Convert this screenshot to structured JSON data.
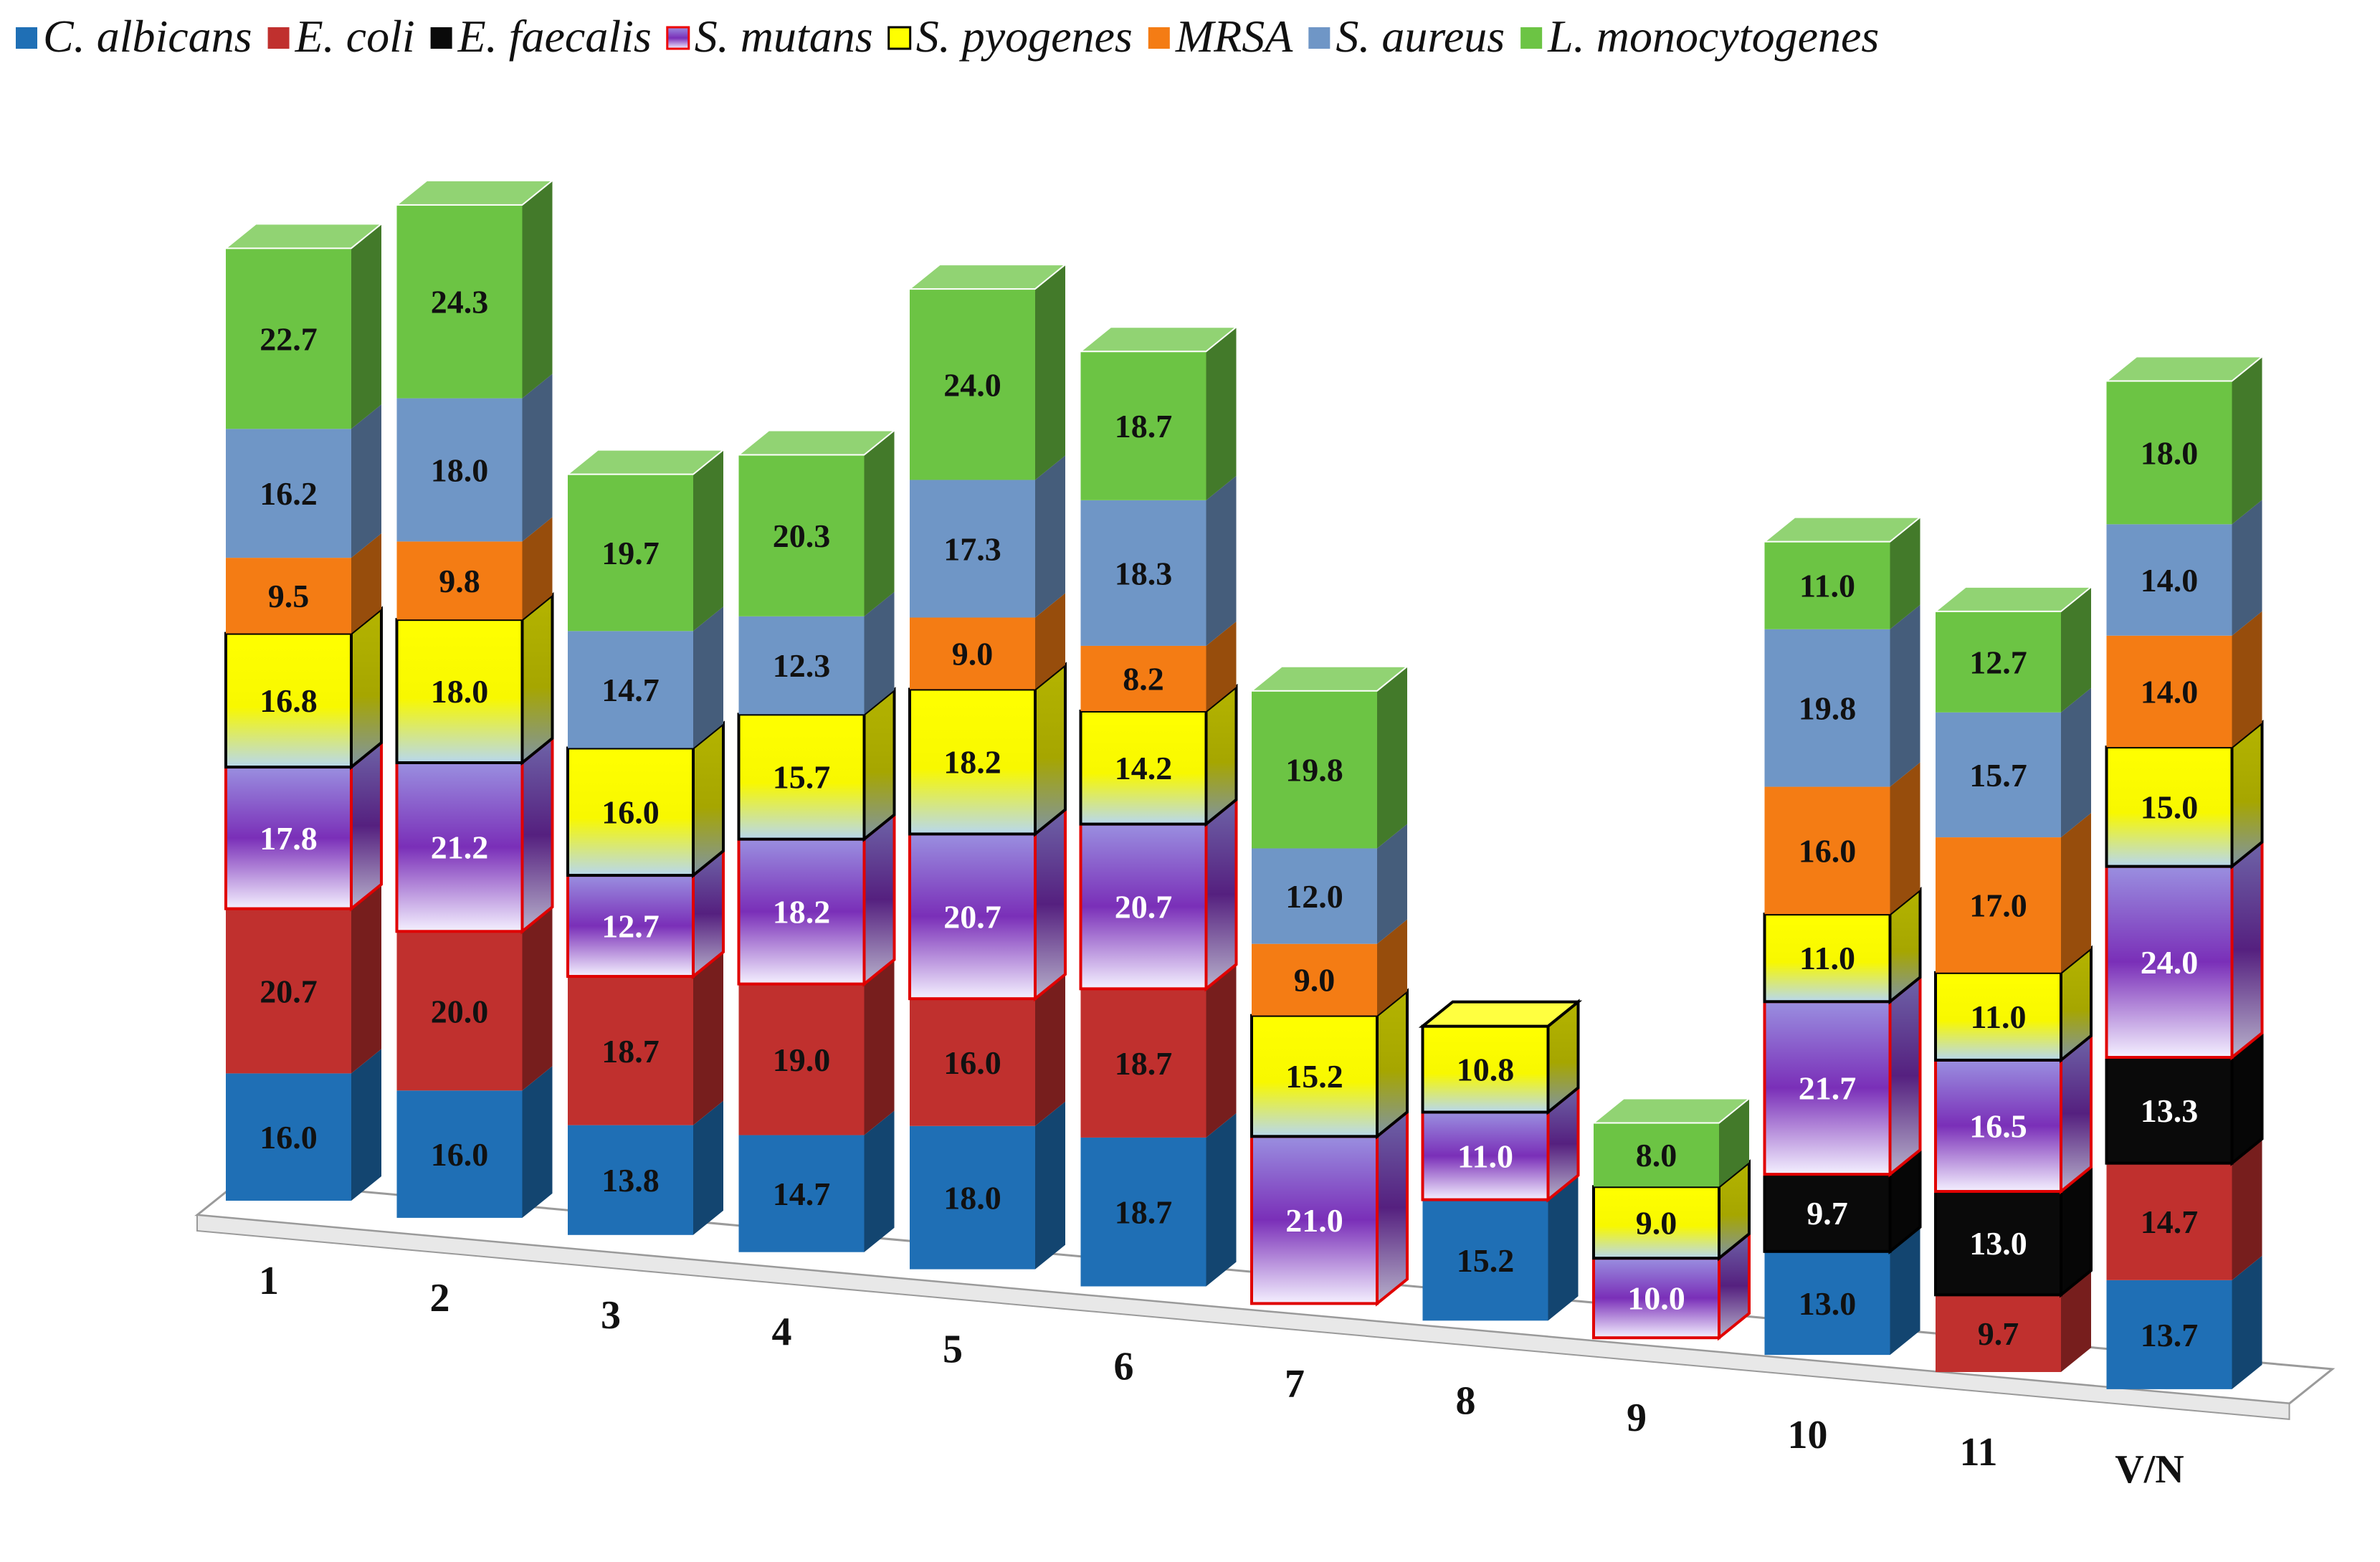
{
  "chart_data": {
    "type": "bar",
    "stacked": true,
    "style": "3d",
    "title": "",
    "xlabel": "",
    "ylabel": "",
    "grid": false,
    "legend_position": "top",
    "categories": [
      "1",
      "2",
      "3",
      "4",
      "5",
      "6",
      "7",
      "8",
      "9",
      "10",
      "11",
      "V/N"
    ],
    "series": [
      {
        "name": "C. albicans",
        "color": "#1f6fb5",
        "values": [
          16.0,
          16.0,
          13.8,
          14.7,
          18.0,
          18.7,
          null,
          15.2,
          null,
          13.0,
          null,
          13.7
        ]
      },
      {
        "name": "E. coli",
        "color": "#c0302e",
        "values": [
          20.7,
          20.0,
          18.7,
          19.0,
          16.0,
          18.7,
          null,
          null,
          null,
          null,
          9.7,
          14.7
        ]
      },
      {
        "name": "E. faecalis",
        "color": "#0a0a0a",
        "values": [
          null,
          null,
          null,
          null,
          null,
          null,
          null,
          null,
          null,
          9.7,
          13.0,
          13.3
        ]
      },
      {
        "name": "S. mutans",
        "color": "#8a3fc0",
        "values": [
          17.8,
          21.2,
          12.7,
          18.2,
          20.7,
          20.7,
          21.0,
          11.0,
          10.0,
          21.7,
          16.5,
          24.0
        ]
      },
      {
        "name": "S. pyogenes",
        "color": "#ffff00",
        "values": [
          16.8,
          18.0,
          16.0,
          15.7,
          18.2,
          14.2,
          15.2,
          10.8,
          9.0,
          11.0,
          11.0,
          15.0
        ]
      },
      {
        "name": "MRSA",
        "color": "#f47c14",
        "values": [
          9.5,
          9.8,
          null,
          null,
          9.0,
          8.2,
          9.0,
          null,
          null,
          16.0,
          17.0,
          14.0
        ]
      },
      {
        "name": "S. aureus",
        "color": "#6f96c6",
        "values": [
          16.2,
          18.0,
          14.7,
          12.3,
          17.3,
          18.3,
          12.0,
          null,
          null,
          19.8,
          15.7,
          14.0
        ]
      },
      {
        "name": "L. monocytogenes",
        "color": "#6cc444",
        "values": [
          22.7,
          24.3,
          19.7,
          20.3,
          24.0,
          18.7,
          19.8,
          null,
          8.0,
          11.0,
          12.7,
          18.0
        ]
      }
    ]
  }
}
